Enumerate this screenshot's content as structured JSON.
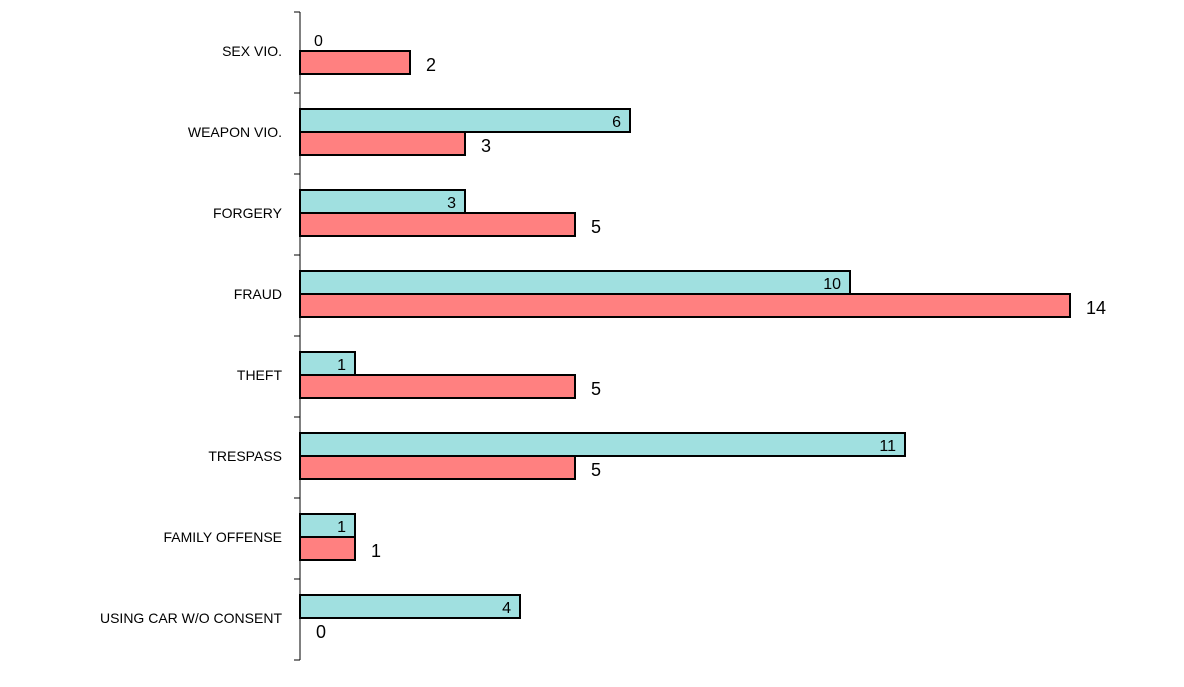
{
  "chart_data": {
    "type": "bar",
    "orientation": "horizontal",
    "categories": [
      "SEX VIO.",
      "WEAPON VIO.",
      "FORGERY",
      "FRAUD",
      "THEFT",
      "TRESPASS",
      "FAMILY OFFENSE",
      "USING CAR W/O CONSENT"
    ],
    "series": [
      {
        "values": [
          0,
          6,
          3,
          10,
          1,
          11,
          1,
          4
        ],
        "color": "#a0e0e0"
      },
      {
        "values": [
          2,
          3,
          5,
          14,
          5,
          5,
          1,
          0
        ],
        "color": "#ff8080"
      }
    ],
    "xlim": [
      0,
      14
    ],
    "grid": false,
    "title": "",
    "xlabel": "",
    "ylabel": ""
  }
}
